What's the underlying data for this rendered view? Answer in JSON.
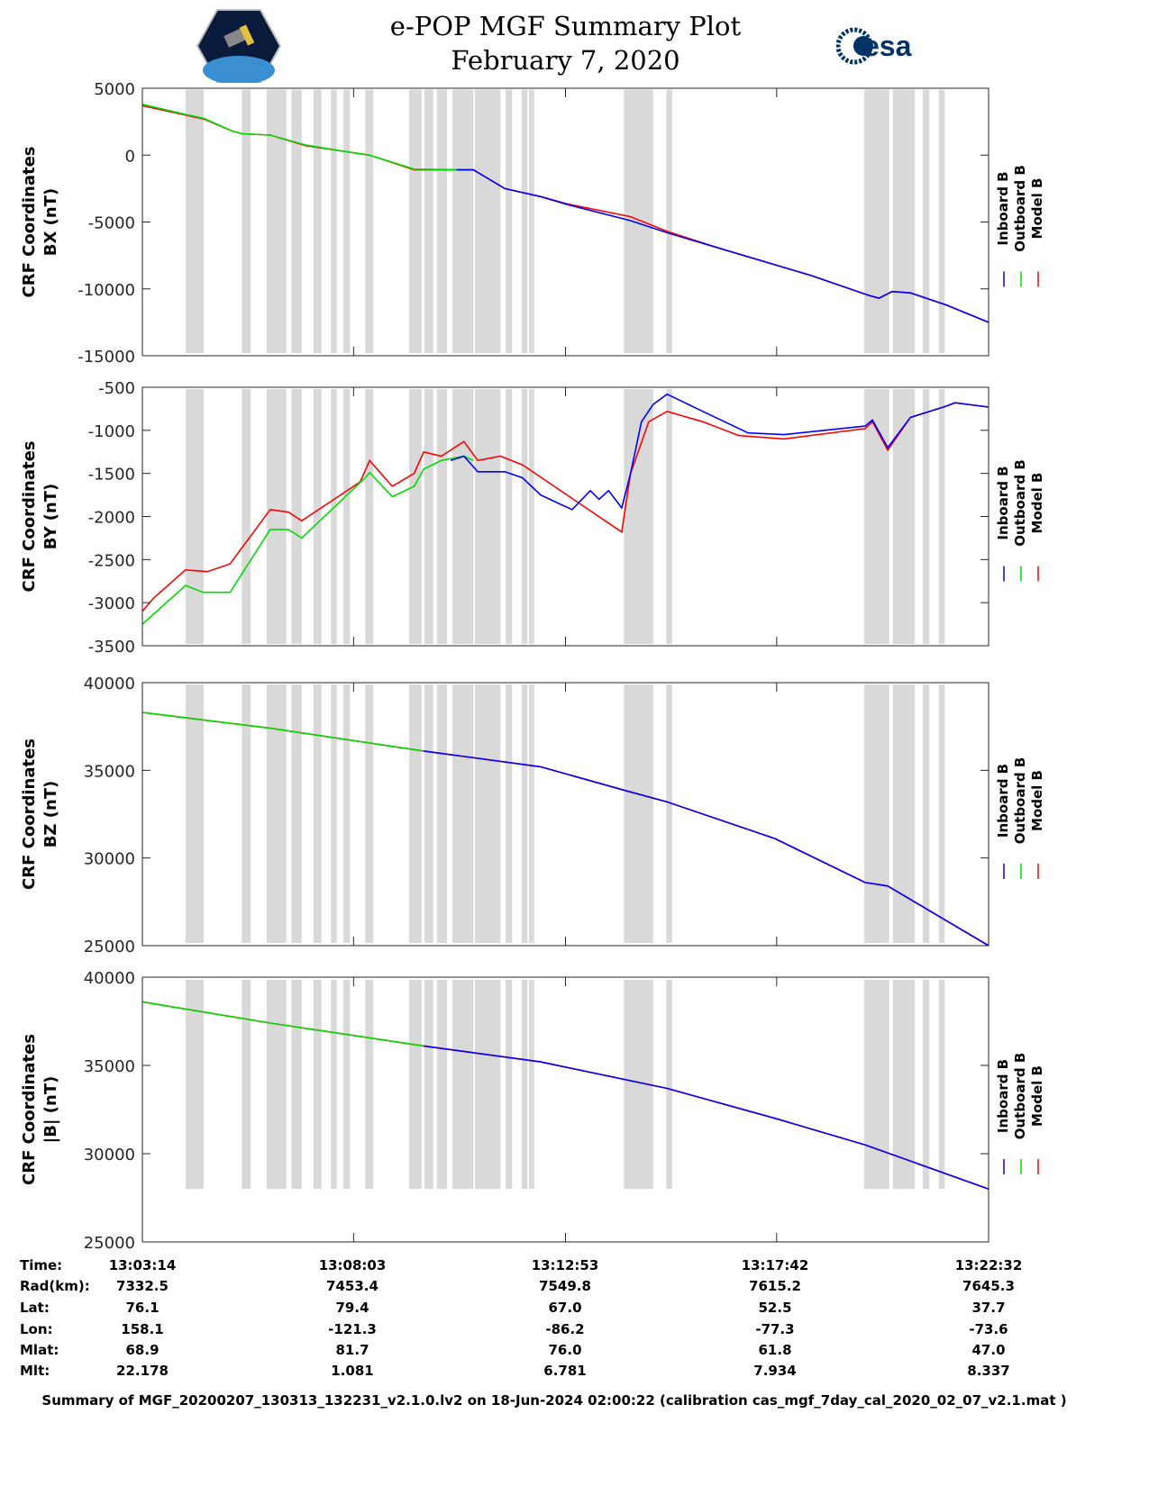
{
  "header": {
    "title": "e-POP MGF Summary Plot",
    "date": "February 7, 2020",
    "left_logo": "CASSIOPE",
    "right_logo": "esa"
  },
  "colors": {
    "inboard": "#0000ff",
    "outboard": "#00dd00",
    "model": "#ff0000",
    "band": "#d9d9d9"
  },
  "chart_data": [
    {
      "type": "line",
      "ylabel_line1": "CRF Coordinates",
      "ylabel_line2": "BX (nT)",
      "ylim": [
        -15000,
        5000
      ],
      "yticks": [
        5000,
        0,
        -5000,
        -10000,
        -15000
      ],
      "xlim_seconds": [
        0,
        1158
      ],
      "band_range": [
        -14800,
        4900
      ],
      "series": [
        {
          "name": "Model B",
          "key": "model",
          "x": [
            0,
            59,
            84,
            123,
            136,
            175,
            224,
            274,
            311,
            372,
            453,
            496,
            545,
            582,
            668,
            718,
            792,
            915,
            995,
            1008,
            1026,
            1051,
            1100,
            1158
          ],
          "y": [
            3700,
            3000,
            2700,
            1800,
            1600,
            1500,
            700,
            300,
            0,
            -1100,
            -1100,
            -2500,
            -3100,
            -3650,
            -4600,
            -5700,
            -7000,
            -9000,
            -10500,
            -10700,
            -10200,
            -10300,
            -11200,
            -12500
          ]
        },
        {
          "name": "Outboard B",
          "key": "outboard",
          "x": [
            0,
            59,
            84,
            123,
            136,
            175,
            224,
            274,
            311,
            372,
            453
          ],
          "y": [
            3800,
            3050,
            2750,
            1800,
            1600,
            1500,
            750,
            300,
            0,
            -1050,
            -1100
          ]
        },
        {
          "name": "Inboard B",
          "key": "inboard",
          "x": [
            430,
            453,
            496,
            545,
            582,
            668,
            718,
            792,
            915,
            995,
            1008,
            1026,
            1051,
            1100,
            1158
          ],
          "y": [
            -1100,
            -1100,
            -2500,
            -3100,
            -3700,
            -4900,
            -5800,
            -7000,
            -9000,
            -10500,
            -10700,
            -10200,
            -10300,
            -11200,
            -12500
          ]
        }
      ]
    },
    {
      "type": "line",
      "ylabel_line1": "CRF Coordinates",
      "ylabel_line2": "BY (nT)",
      "ylim": [
        -3500,
        -500
      ],
      "yticks": [
        -500,
        -1000,
        -1500,
        -2000,
        -2500,
        -3000,
        -3500
      ],
      "xlim_seconds": [
        0,
        1158
      ],
      "band_range": [
        -3480,
        -520
      ],
      "series": [
        {
          "name": "Model B",
          "key": "model",
          "x": [
            0,
            15,
            59,
            89,
            120,
            175,
            200,
            218,
            298,
            311,
            342,
            372,
            385,
            409,
            440,
            459,
            490,
            520,
            656,
            668,
            693,
            718,
            767,
            816,
            878,
            989,
            999,
            1020,
            1051,
            1100,
            1112,
            1158
          ],
          "y": [
            -3100,
            -2950,
            -2620,
            -2640,
            -2550,
            -1920,
            -1950,
            -2050,
            -1600,
            -1350,
            -1650,
            -1500,
            -1250,
            -1300,
            -1130,
            -1350,
            -1300,
            -1400,
            -2180,
            -1500,
            -900,
            -780,
            -900,
            -1060,
            -1100,
            -980,
            -900,
            -1230,
            -850,
            -720,
            -680,
            -730
          ]
        },
        {
          "name": "Outboard B",
          "key": "outboard",
          "x": [
            0,
            59,
            83,
            120,
            175,
            200,
            218,
            305,
            311,
            342,
            372,
            385,
            409,
            440,
            453
          ],
          "y": [
            -3250,
            -2800,
            -2880,
            -2880,
            -2150,
            -2150,
            -2250,
            -1550,
            -1490,
            -1770,
            -1650,
            -1450,
            -1350,
            -1300,
            -1350
          ]
        },
        {
          "name": "Inboard B",
          "key": "inboard",
          "x": [
            422,
            440,
            459,
            496,
            520,
            545,
            570,
            588,
            613,
            625,
            638,
            656,
            668,
            683,
            699,
            718,
            767,
            829,
            878,
            989,
            999,
            1020,
            1051,
            1100,
            1112,
            1158
          ],
          "y": [
            -1350,
            -1300,
            -1480,
            -1480,
            -1550,
            -1750,
            -1850,
            -1920,
            -1700,
            -1800,
            -1700,
            -1900,
            -1500,
            -900,
            -700,
            -580,
            -780,
            -1030,
            -1050,
            -950,
            -880,
            -1200,
            -850,
            -720,
            -680,
            -730
          ]
        }
      ]
    },
    {
      "type": "line",
      "ylabel_line1": "CRF Coordinates",
      "ylabel_line2": "BZ (nT)",
      "ylim": [
        25000,
        40000
      ],
      "yticks": [
        40000,
        35000,
        30000,
        25000
      ],
      "xlim_seconds": [
        0,
        1158
      ],
      "band_range": [
        25150,
        39900
      ],
      "series": [
        {
          "name": "Model B",
          "key": "model",
          "x": [
            0,
            175,
            385,
            545,
            656,
            718,
            866,
            989,
            1020,
            1158
          ],
          "y": [
            38300,
            37400,
            36100,
            35200,
            33900,
            33200,
            31100,
            28600,
            28400,
            25000
          ]
        },
        {
          "name": "Outboard B",
          "key": "outboard",
          "x": [
            0,
            175,
            385
          ],
          "y": [
            38300,
            37400,
            36100
          ]
        },
        {
          "name": "Inboard B",
          "key": "inboard",
          "x": [
            385,
            545,
            656,
            718,
            866,
            989,
            1020,
            1158
          ],
          "y": [
            36100,
            35200,
            33900,
            33200,
            31100,
            28600,
            28400,
            25000
          ]
        }
      ]
    },
    {
      "type": "line",
      "ylabel_line1": "CRF Coordinates",
      "ylabel_line2": "|B| (nT)",
      "ylim": [
        25000,
        40000
      ],
      "yticks": [
        40000,
        35000,
        30000,
        25000
      ],
      "xlim_seconds": [
        0,
        1158
      ],
      "band_range": [
        28000,
        39850
      ],
      "series": [
        {
          "name": "Model B",
          "key": "model",
          "x": [
            0,
            175,
            385,
            545,
            718,
            866,
            989,
            1158
          ],
          "y": [
            38600,
            37400,
            36100,
            35200,
            33700,
            32000,
            30500,
            28000
          ]
        },
        {
          "name": "Outboard B",
          "key": "outboard",
          "x": [
            0,
            175,
            385
          ],
          "y": [
            38600,
            37400,
            36100
          ]
        },
        {
          "name": "Inboard B",
          "key": "inboard",
          "x": [
            385,
            545,
            718,
            866,
            989,
            1158
          ],
          "y": [
            36100,
            35200,
            33700,
            32000,
            30500,
            28000
          ]
        }
      ]
    }
  ],
  "data_gaps_seconds": [
    [
      59,
      84
    ],
    [
      136,
      148
    ],
    [
      170,
      197
    ],
    [
      204,
      218
    ],
    [
      234,
      245
    ],
    [
      258,
      266
    ],
    [
      275,
      284
    ],
    [
      305,
      316
    ],
    [
      365,
      382
    ],
    [
      386,
      398
    ],
    [
      403,
      417
    ],
    [
      424,
      453
    ],
    [
      455,
      490
    ],
    [
      497,
      506
    ],
    [
      519,
      527
    ],
    [
      529,
      536
    ],
    [
      659,
      699
    ],
    [
      717,
      725
    ],
    [
      988,
      1022
    ],
    [
      1027,
      1057
    ],
    [
      1068,
      1077
    ],
    [
      1090,
      1098
    ]
  ],
  "xtick_seconds": [
    0,
    289,
    579,
    868,
    1158
  ],
  "legend": [
    "Inboard B",
    "Outboard B",
    "Model B"
  ],
  "table": {
    "labels": [
      "Time:",
      "Rad(km):",
      "Lat:",
      "Lon:",
      "Mlat:",
      "Mlt:"
    ],
    "columns": [
      [
        "13:03:14",
        "7332.5",
        "76.1",
        "158.1",
        "68.9",
        "22.178"
      ],
      [
        "13:08:03",
        "7453.4",
        "79.4",
        "-121.3",
        "81.7",
        "1.081"
      ],
      [
        "13:12:53",
        "7549.8",
        "67.0",
        "-86.2",
        "76.0",
        "6.781"
      ],
      [
        "13:17:42",
        "7615.2",
        "52.5",
        "-77.3",
        "61.8",
        "7.934"
      ],
      [
        "13:22:32",
        "7645.3",
        "37.7",
        "-73.6",
        "47.0",
        "8.337"
      ]
    ]
  },
  "footer": "Summary of MGF_20200207_130313_132231_v2.1.0.lv2 on 18-Jun-2024 02:00:22 (calibration cas_mgf_7day_cal_2020_02_07_v2.1.mat )"
}
